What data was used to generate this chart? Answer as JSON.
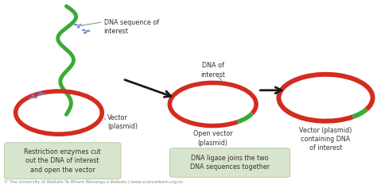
{
  "bg_color": "#ffffff",
  "red_color": "#d42b20",
  "green_color": "#3aaa35",
  "arrow_color": "#1a1a1a",
  "text_color": "#333333",
  "label_box_color": "#d4e3c8",
  "footer_text": "© The University of Waikato Te Whare Wananga o Waikato | www.sciencelearn.org.nz",
  "annotations": {
    "dna_seq": "DNA sequence of\ninterest",
    "vector": "Vector\n(plasmid)",
    "restriction": "Restriction enzymes cut\nout the DNA of interest\nand open the vector",
    "dna_of_interest": "DNA of\ninterest",
    "open_vector": "Open vector\n(plasmid)",
    "ligase": "DNA ligase joins the two\nDNA sequences together",
    "final_vector": "Vector (plasmid)\ncontaining DNA\nof interest"
  }
}
